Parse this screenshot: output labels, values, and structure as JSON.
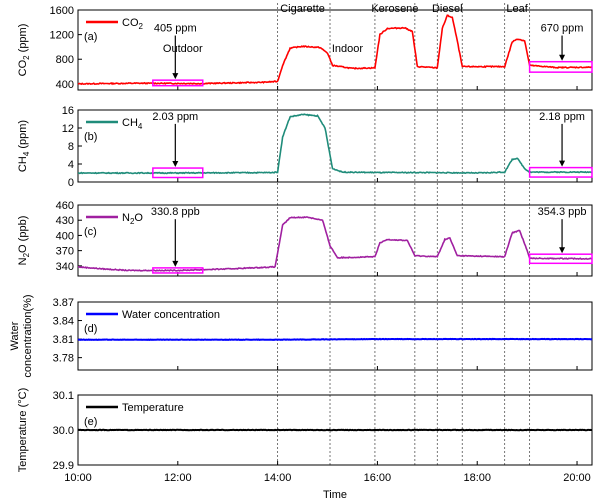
{
  "chart_data": {
    "type": "line",
    "x_label": "Time",
    "x_ticks": [
      "10:00",
      "12:00",
      "14:00",
      "16:00",
      "18:00",
      "20:00"
    ],
    "x_range_hours": [
      10,
      20.3
    ],
    "event_labels": [
      {
        "label": "Outdoor",
        "x_hours": 12.1
      },
      {
        "label": "Cigarette",
        "x_hours": 14.5
      },
      {
        "label": "Indoor",
        "x_hours": 15.4
      },
      {
        "label": "Kerosene",
        "x_hours": 16.35
      },
      {
        "label": "Diesel",
        "x_hours": 17.4
      },
      {
        "label": "Leaf",
        "x_hours": 18.8
      }
    ],
    "event_boundaries_hours": [
      14.0,
      15.05,
      15.95,
      16.75,
      17.2,
      17.7,
      18.55,
      19.05
    ],
    "panels": [
      {
        "id": "co2",
        "panel_label": "(a)",
        "ylabel_main": "CO",
        "ylabel_sub": "2",
        "ylabel_unit": " (ppm)",
        "ylim": [
          300,
          1600
        ],
        "yticks": [
          "400",
          "800",
          "1200",
          "1600"
        ],
        "ytick_values": [
          400,
          800,
          1200,
          1600
        ],
        "color": "#ff0000",
        "legend_main": "CO",
        "legend_sub": "2",
        "annotations": [
          {
            "text": "405 ppm",
            "x_hours": 11.95,
            "box": [
              11.5,
              12.5,
              370,
              460
            ],
            "text_y": 1250
          },
          {
            "text": "670 ppm",
            "x_hours": 19.7,
            "box": [
              19.05,
              20.3,
              590,
              760
            ],
            "text_y": 1250
          }
        ],
        "series": [
          [
            10.0,
            400
          ],
          [
            11.2,
            410
          ],
          [
            12.5,
            405
          ],
          [
            13.7,
            425
          ],
          [
            14.0,
            440
          ],
          [
            14.1,
            700
          ],
          [
            14.25,
            980
          ],
          [
            14.5,
            1010
          ],
          [
            14.85,
            990
          ],
          [
            15.0,
            900
          ],
          [
            15.1,
            700
          ],
          [
            15.5,
            650
          ],
          [
            15.95,
            660
          ],
          [
            16.05,
            1200
          ],
          [
            16.2,
            1300
          ],
          [
            16.55,
            1310
          ],
          [
            16.7,
            1250
          ],
          [
            16.8,
            680
          ],
          [
            17.2,
            660
          ],
          [
            17.3,
            1300
          ],
          [
            17.4,
            1510
          ],
          [
            17.5,
            1480
          ],
          [
            17.6,
            1100
          ],
          [
            17.7,
            680
          ],
          [
            18.55,
            680
          ],
          [
            18.7,
            1080
          ],
          [
            18.8,
            1130
          ],
          [
            18.95,
            1100
          ],
          [
            19.05,
            700
          ],
          [
            19.6,
            665
          ],
          [
            20.3,
            670
          ]
        ]
      },
      {
        "id": "ch4",
        "panel_label": "(b)",
        "ylabel_main": "CH",
        "ylabel_sub": "4",
        "ylabel_unit": " (ppm)",
        "ylim": [
          0,
          16
        ],
        "yticks": [
          "0",
          "4",
          "8",
          "12",
          "16"
        ],
        "ytick_values": [
          0,
          4,
          8,
          12,
          16
        ],
        "color": "#1f8c7a",
        "legend_main": "CH",
        "legend_sub": "4",
        "annotations": [
          {
            "text": "2.03 ppm",
            "x_hours": 11.95,
            "box": [
              11.5,
              12.5,
              1.0,
              3.1
            ],
            "text_y": 13.8
          },
          {
            "text": "2.18 ppm",
            "x_hours": 19.7,
            "box": [
              19.05,
              20.3,
              1.1,
              3.2
            ],
            "text_y": 13.8
          }
        ],
        "series": [
          [
            10.0,
            2.0
          ],
          [
            12.0,
            2.0
          ],
          [
            13.9,
            2.1
          ],
          [
            14.0,
            2.2
          ],
          [
            14.1,
            10.0
          ],
          [
            14.25,
            14.5
          ],
          [
            14.5,
            15.0
          ],
          [
            14.8,
            14.7
          ],
          [
            14.95,
            12.0
          ],
          [
            15.1,
            3.0
          ],
          [
            15.3,
            2.2
          ],
          [
            16.0,
            2.1
          ],
          [
            17.0,
            2.1
          ],
          [
            18.0,
            2.0
          ],
          [
            18.55,
            2.2
          ],
          [
            18.7,
            5.0
          ],
          [
            18.8,
            5.3
          ],
          [
            18.95,
            3.0
          ],
          [
            19.05,
            2.2
          ],
          [
            20.3,
            2.2
          ]
        ]
      },
      {
        "id": "n2o",
        "panel_label": "(c)",
        "ylabel_main": "N",
        "ylabel_sub": "2",
        "ylabel_unit": "O (ppb)",
        "ylim": [
          320,
          460
        ],
        "yticks": [
          "340",
          "370",
          "400",
          "430",
          "460"
        ],
        "ytick_values": [
          340,
          370,
          400,
          430,
          460
        ],
        "color": "#a020a0",
        "legend_main": "N",
        "legend_sub": "2",
        "legend_tail": "O",
        "annotations": [
          {
            "text": "330.8 ppb",
            "x_hours": 11.95,
            "box": [
              11.5,
              12.5,
              326,
              336
            ],
            "text_y": 440
          },
          {
            "text": "354.3 ppb",
            "x_hours": 19.7,
            "box": [
              19.05,
              20.3,
              345,
              363
            ],
            "text_y": 440
          }
        ],
        "series": [
          [
            10.0,
            338
          ],
          [
            10.5,
            334
          ],
          [
            11.0,
            331
          ],
          [
            12.0,
            331
          ],
          [
            13.0,
            334
          ],
          [
            13.95,
            338
          ],
          [
            14.1,
            420
          ],
          [
            14.25,
            435
          ],
          [
            14.6,
            436
          ],
          [
            14.9,
            430
          ],
          [
            15.05,
            380
          ],
          [
            15.2,
            356
          ],
          [
            15.95,
            358
          ],
          [
            16.05,
            385
          ],
          [
            16.2,
            392
          ],
          [
            16.6,
            390
          ],
          [
            16.75,
            360
          ],
          [
            17.2,
            358
          ],
          [
            17.35,
            392
          ],
          [
            17.45,
            395
          ],
          [
            17.6,
            360
          ],
          [
            18.55,
            358
          ],
          [
            18.7,
            405
          ],
          [
            18.85,
            410
          ],
          [
            19.0,
            370
          ],
          [
            19.05,
            355
          ],
          [
            20.3,
            354
          ]
        ]
      },
      {
        "id": "water",
        "panel_label": "(d)",
        "ylabel_lines": [
          "Water",
          "concentration(%)"
        ],
        "ylim": [
          3.76,
          3.87
        ],
        "yticks": [
          "3.78",
          "3.81",
          "3.84",
          "3.87"
        ],
        "ytick_values": [
          3.78,
          3.81,
          3.84,
          3.87
        ],
        "color": "#0000ff",
        "legend_main": "Water concentration",
        "annotations": [],
        "series": [
          [
            10.0,
            3.809
          ],
          [
            12.0,
            3.809
          ],
          [
            14.0,
            3.809
          ],
          [
            16.0,
            3.81
          ],
          [
            18.0,
            3.81
          ],
          [
            20.3,
            3.81
          ]
        ]
      },
      {
        "id": "temp",
        "panel_label": "(e)",
        "ylabel_lines": [
          "Temperature (°C)"
        ],
        "ylim": [
          29.9,
          30.1
        ],
        "yticks": [
          "29.9",
          "30.0",
          "30.1"
        ],
        "ytick_values": [
          29.9,
          30.0,
          30.1
        ],
        "color": "#000000",
        "legend_main": "Temperature",
        "annotations": [],
        "series": [
          [
            10.0,
            30.0
          ],
          [
            12.0,
            30.0
          ],
          [
            14.0,
            30.0
          ],
          [
            16.0,
            30.0
          ],
          [
            18.0,
            30.0
          ],
          [
            20.3,
            30.0
          ]
        ]
      }
    ]
  }
}
